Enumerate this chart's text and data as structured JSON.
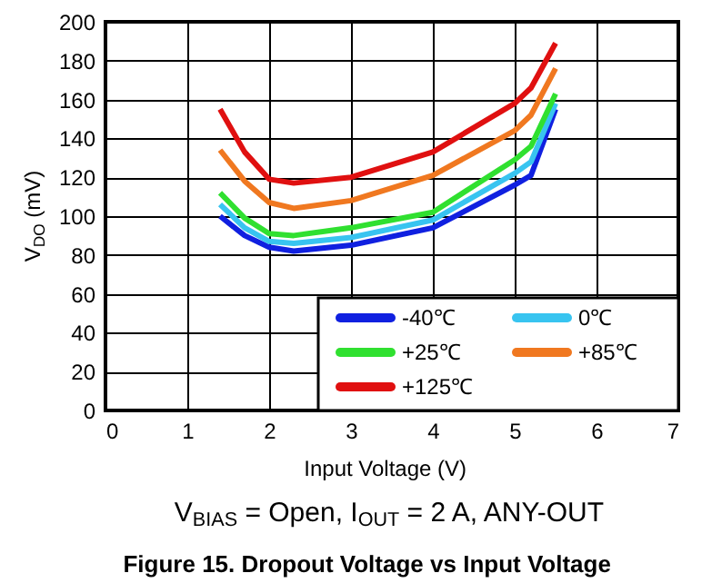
{
  "chart_data": {
    "type": "line",
    "title": "Figure 15. Dropout Voltage vs Input Voltage",
    "subtitle": "V$_{BIAS}$ = Open, I$_{OUT}$ = 2 A, ANY-OUT",
    "xlabel": "Input Voltage (V)",
    "ylabel": "V$_{DO}$ (mV)",
    "x": [
      1.4,
      1.7,
      2.0,
      2.3,
      3.0,
      4.0,
      5.0,
      5.2,
      5.5
    ],
    "series": [
      {
        "name": "-40℃",
        "color": "#1020e0",
        "values": [
          100,
          90,
          84,
          82,
          85,
          94,
          116,
          121,
          155
        ]
      },
      {
        "name": "0℃",
        "color": "#38c4f0",
        "values": [
          106,
          94,
          87,
          86,
          89,
          98,
          122,
          128,
          158
        ]
      },
      {
        "name": "+25℃",
        "color": "#30e030",
        "values": [
          112,
          99,
          91,
          90,
          94,
          102,
          129,
          136,
          163
        ]
      },
      {
        "name": "+85℃",
        "color": "#f07820",
        "values": [
          134,
          118,
          107,
          104,
          108,
          121,
          144,
          152,
          176
        ]
      },
      {
        "name": "+125℃",
        "color": "#e01010",
        "values": [
          155,
          133,
          119,
          117,
          120,
          133,
          158,
          166,
          189
        ]
      }
    ],
    "xlim": [
      0,
      7
    ],
    "xticks": [
      0,
      1,
      2,
      3,
      4,
      5,
      6,
      7
    ],
    "ylim": [
      0,
      200
    ],
    "yticks": [
      0,
      20,
      40,
      60,
      80,
      100,
      120,
      140,
      160,
      180,
      200
    ],
    "grid": true,
    "legend": "bottom right",
    "marker": "none",
    "line_style": "solid"
  }
}
